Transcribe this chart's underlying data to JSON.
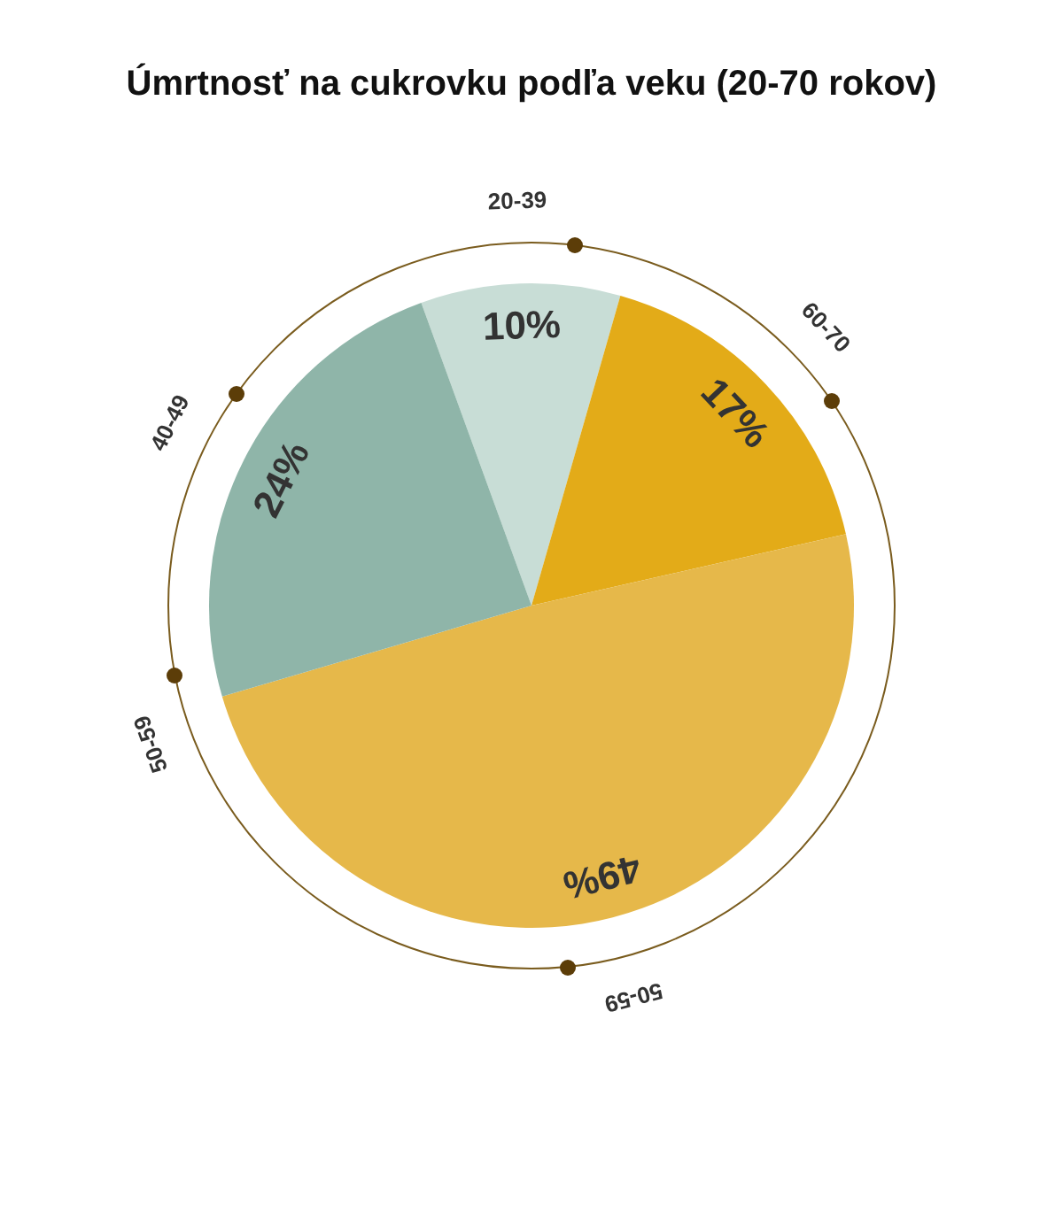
{
  "chart_data": {
    "type": "pie",
    "title": "Úmrtnosť na cukrovku podľa veku (20-70 rokov)",
    "categories": [
      "20-39",
      "60-70",
      "50-59",
      "40-49"
    ],
    "values": [
      10,
      17,
      49,
      24
    ],
    "colors": [
      "#c8ddd6",
      "#e3ab18",
      "#e6b84a",
      "#8fb5a9"
    ],
    "value_labels": [
      "10%",
      "17%",
      "49%",
      "24%"
    ],
    "annotations": [
      "50-59"
    ],
    "legend": false
  }
}
